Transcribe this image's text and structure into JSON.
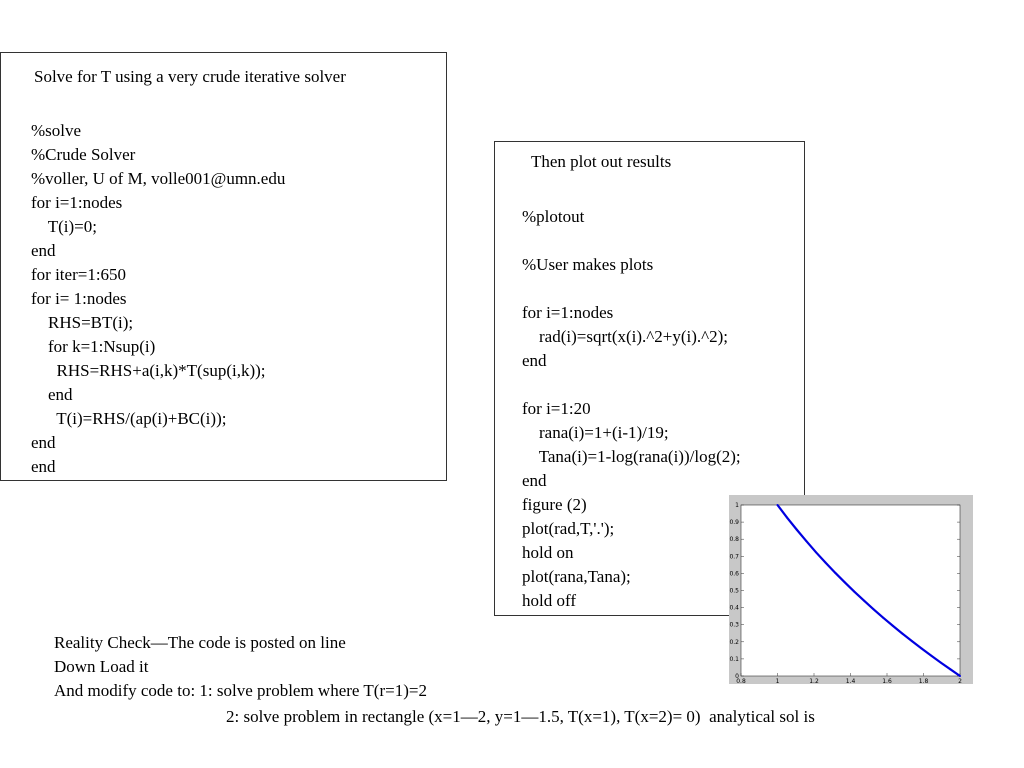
{
  "box1": {
    "title": "Solve for T using a very crude iterative solver",
    "code": [
      "%solve",
      "%Crude Solver",
      "%voller, U of M, volle001@umn.edu",
      "for i=1:nodes",
      "    T(i)=0;",
      "end",
      "for iter=1:650",
      "for i= 1:nodes",
      "    RHS=BT(i);",
      "    for k=1:Nsup(i)",
      "      RHS=RHS+a(i,k)*T(sup(i,k));",
      "    end",
      "      T(i)=RHS/(ap(i)+BC(i));",
      "end",
      "end"
    ]
  },
  "box2": {
    "title": "Then plot out results",
    "code": [
      "%plotout",
      "",
      "%User makes plots",
      "",
      "for i=1:nodes",
      "    rad(i)=sqrt(x(i).^2+y(i).^2);",
      "end",
      "",
      "for i=1:20",
      "    rana(i)=1+(i-1)/19;",
      "    Tana(i)=1-log(rana(i))/log(2);",
      "end",
      "figure (2)",
      "plot(rad,T,'.');",
      "hold on",
      "plot(rana,Tana);",
      "hold off"
    ]
  },
  "notes": [
    "Reality Check—The code is posted on line",
    "Down Load it",
    "And modify code to: 1: solve problem where T(r=1)=2"
  ],
  "note_indent": "2: solve problem in rectangle (x=1—2, y=1—1.5, T(x=1), T(x=2)= 0)  analytical sol is",
  "chart_data": {
    "type": "line",
    "xlim": [
      0.8,
      2
    ],
    "ylim": [
      0,
      1
    ],
    "xticks": [
      "0.8",
      "1",
      "1.2",
      "1.4",
      "1.6",
      "1.8",
      "2"
    ],
    "yticks": [
      "0",
      "0.1",
      "0.2",
      "0.3",
      "0.4",
      "0.5",
      "0.6",
      "0.7",
      "0.8",
      "0.9",
      "1"
    ],
    "x": [
      1,
      1.0526,
      1.1053,
      1.1579,
      1.2105,
      1.2632,
      1.3158,
      1.3684,
      1.4211,
      1.4737,
      1.5263,
      1.5789,
      1.6316,
      1.6842,
      1.7368,
      1.7895,
      1.8421,
      1.8947,
      1.9474,
      2
    ],
    "series": [
      {
        "values": [
          1,
          0.926,
          0.856,
          0.789,
          0.724,
          0.663,
          0.604,
          0.548,
          0.493,
          0.441,
          0.39,
          0.341,
          0.294,
          0.248,
          0.204,
          0.161,
          0.119,
          0.078,
          0.039,
          0
        ]
      }
    ],
    "color": "#0000e0",
    "grid": false
  }
}
